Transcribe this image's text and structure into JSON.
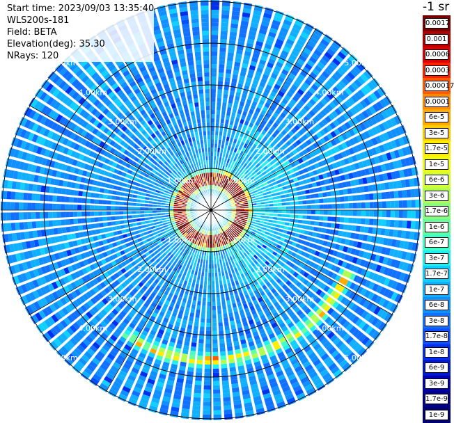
{
  "info": {
    "start_time": "Start time: 2023/09/03 13:35:40",
    "device": "WLS200s-181",
    "field": "Field: BETA",
    "elevation": "Elevation(deg): 35.30",
    "nrays": "NRays: 120"
  },
  "colorbar": {
    "unit": "-1 sr",
    "labels": [
      "0.0017",
      "0.001",
      "0.0006",
      "0.0003",
      "0.00017",
      "0.0001",
      "6e-5",
      "3e-5",
      "1.7e-5",
      "1e-5",
      "6e-6",
      "3e-6",
      "1.7e-6",
      "1e-6",
      "6e-7",
      "3e-7",
      "1.7e-7",
      "1e-7",
      "6e-8",
      "3e-8",
      "1.7e-8",
      "1e-8",
      "6e-9",
      "3e-9",
      "1.7e-9",
      "1e-9"
    ],
    "colors": [
      "#7a0000",
      "#b00000",
      "#dd0000",
      "#ff2200",
      "#ff5a00",
      "#ff8800",
      "#ffaa00",
      "#ffcc00",
      "#ffee00",
      "#f0ff10",
      "#d4ff30",
      "#b0ff50",
      "#88ff7a",
      "#66ffa0",
      "#40ffc8",
      "#20f0f0",
      "#10d0ff",
      "#10b0ff",
      "#1090ff",
      "#1070ff",
      "#1050ff",
      "#0030ee",
      "#0018d0",
      "#0000b0",
      "#00008c",
      "#000070"
    ]
  },
  "chart_data": {
    "type": "heatmap",
    "projection": "polar-ppi",
    "rings_km": [
      1,
      2,
      3,
      4,
      5
    ],
    "ring_labels": [
      "1.00km",
      "2.00km",
      "3.00km",
      "4.00km",
      "5.00km"
    ],
    "n_rays": 120,
    "radial_lines_deg": [
      0,
      30,
      60,
      90,
      120,
      150,
      180,
      210,
      240,
      270,
      300,
      330
    ],
    "field": "BETA",
    "features": [
      {
        "name": "inner ring",
        "radius_km": 0.75,
        "level": "high"
      },
      {
        "name": "outer arc",
        "radius_km": 3.6,
        "from_deg": 115,
        "to_deg": 215,
        "level": "medium"
      }
    ]
  }
}
